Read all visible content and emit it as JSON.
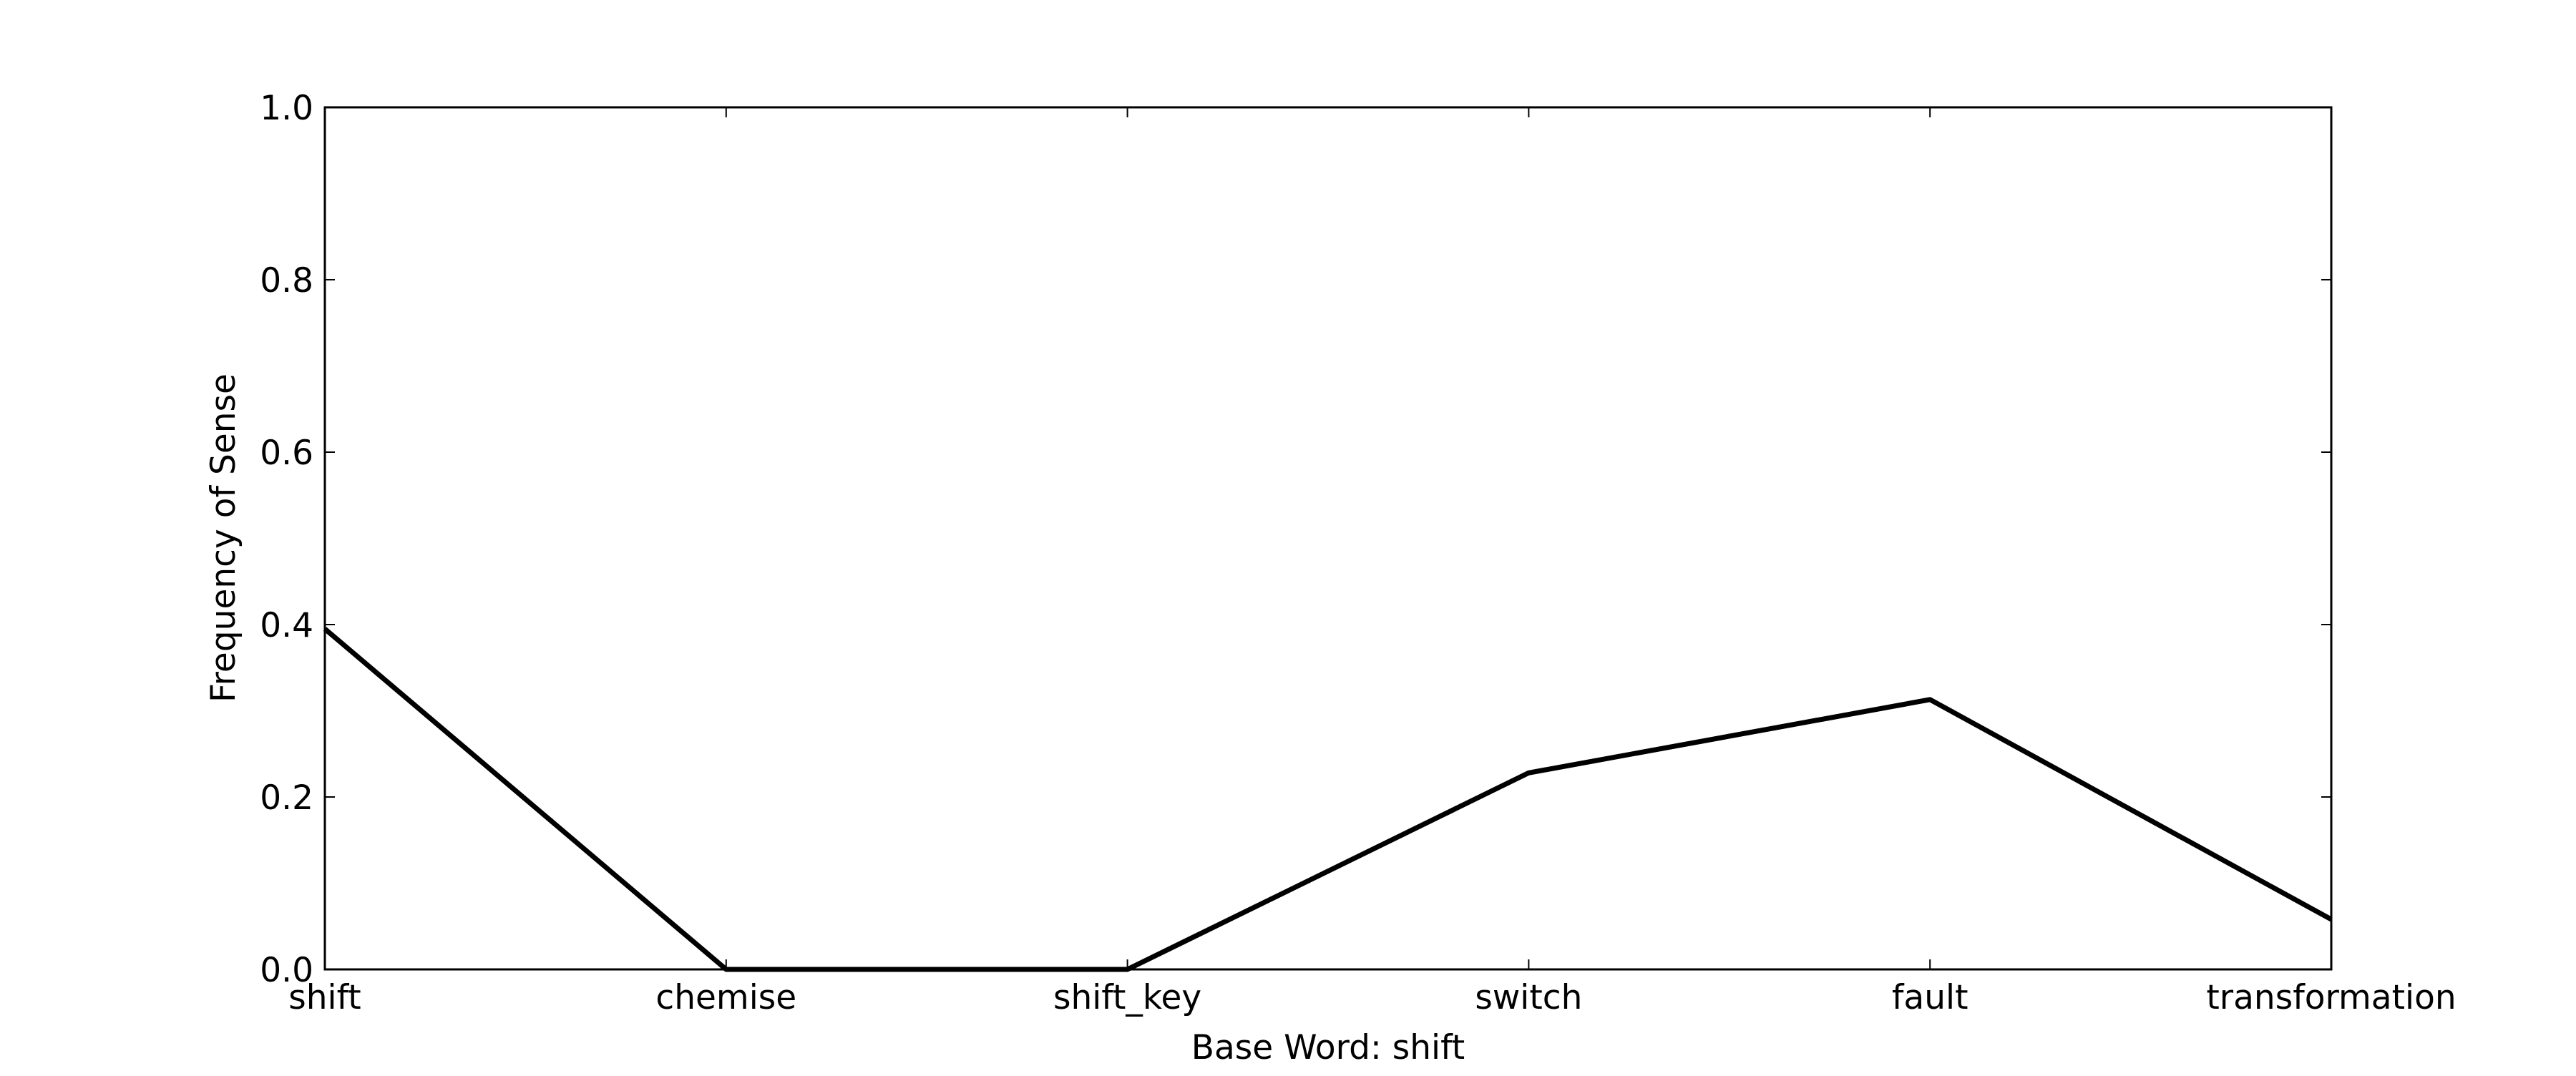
{
  "chart_data": {
    "type": "line",
    "title": "",
    "xlabel": "Base Word: shift",
    "ylabel": "Frequency of Sense",
    "categories": [
      "shift",
      "chemise",
      "shift_key",
      "switch",
      "fault",
      "transformation"
    ],
    "series": [
      {
        "values": [
          0.395,
          0.0,
          0.0,
          0.228,
          0.313,
          0.058
        ]
      }
    ],
    "ylim": [
      0.0,
      1.0
    ],
    "yticks": [
      "0.0",
      "0.2",
      "0.4",
      "0.6",
      "0.8",
      "1.0"
    ],
    "grid": false,
    "line_color": "#000000"
  }
}
